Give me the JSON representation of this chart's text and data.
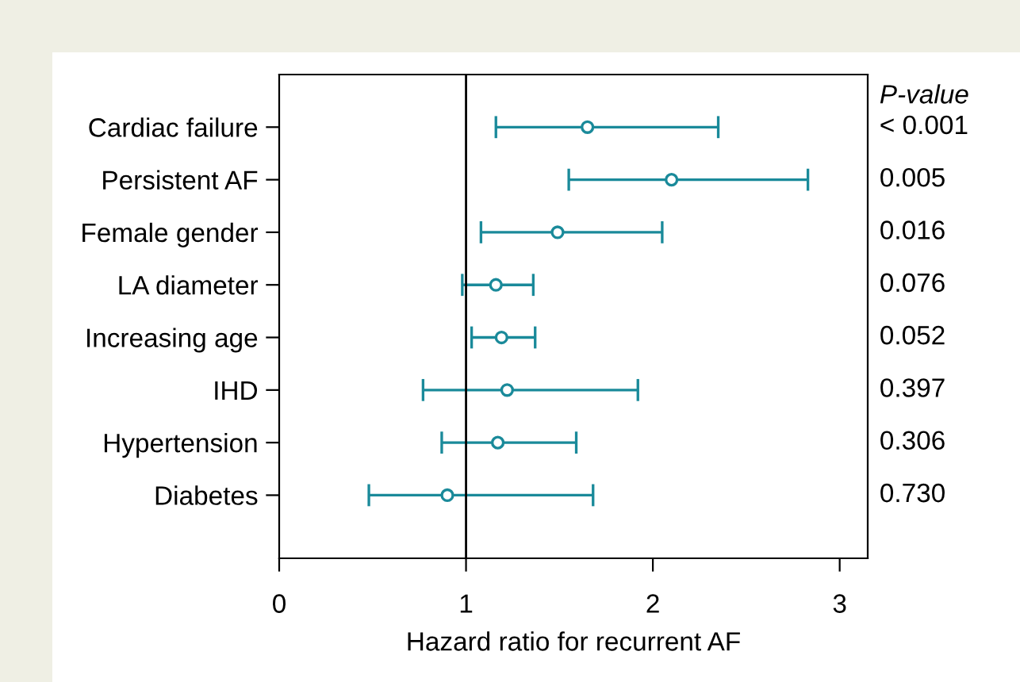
{
  "chart_data": {
    "type": "scatter",
    "categories": [
      "Cardiac failure",
      "Persistent AF",
      "Female gender",
      "LA diameter",
      "Increasing age",
      "IHD",
      "Hypertension",
      "Diabetes"
    ],
    "orientation": "horizontal",
    "series": [
      {
        "color": "#1a8a9a",
        "values": [
          1.65,
          2.1,
          1.49,
          1.16,
          1.19,
          1.22,
          1.17,
          0.9
        ],
        "errors": [
          [
            1.16,
            2.35
          ],
          [
            1.55,
            2.83
          ],
          [
            1.08,
            2.05
          ],
          [
            0.98,
            1.36
          ],
          [
            1.03,
            1.37
          ],
          [
            0.77,
            1.92
          ],
          [
            0.87,
            1.59
          ],
          [
            0.48,
            1.68
          ]
        ]
      }
    ],
    "xlabel": "Hazard ratio for recurrent AF",
    "xlim": [
      0,
      3.15
    ],
    "xticks": [
      0,
      1,
      2,
      3
    ],
    "ref_lines": [
      {
        "axis": "x",
        "value": 1,
        "color": "#000000"
      }
    ],
    "annotations": [
      "P-value",
      "< 0.001",
      "0.005",
      "0.016",
      "0.076",
      "0.052",
      "0.397",
      "0.306",
      "0.730"
    ],
    "marker": "circle"
  }
}
